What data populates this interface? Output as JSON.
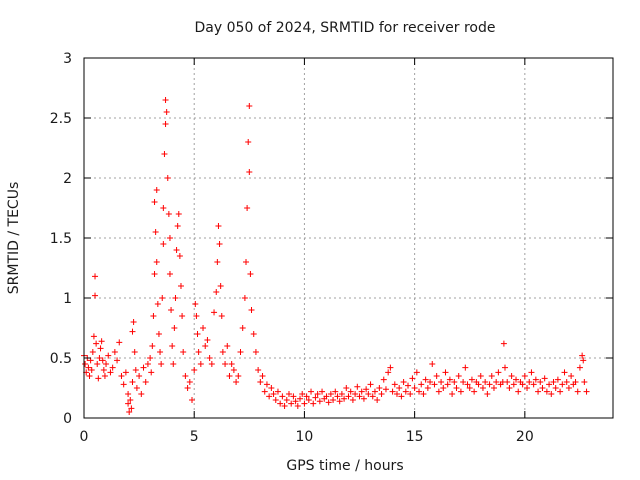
{
  "chart_data": {
    "type": "scatter",
    "title": "Day 050 of 2024, SRMTID for receiver rode",
    "xlabel": "GPS time / hours",
    "ylabel": "SRMTID / TECUs",
    "xlim": [
      0,
      24
    ],
    "ylim": [
      0,
      3
    ],
    "xticks": [
      0,
      5,
      10,
      15,
      20
    ],
    "xtick_labels": [
      "0",
      "5",
      "10",
      "15",
      "20"
    ],
    "yticks": [
      0,
      0.5,
      1,
      1.5,
      2,
      2.5,
      3
    ],
    "ytick_labels": [
      "0",
      "0.5",
      "1",
      "1.5",
      "2",
      "2.5",
      "3"
    ],
    "grid": true,
    "marker": "+",
    "color": "#ff0000",
    "series": [
      {
        "name": "SRMTID",
        "points": [
          [
            0.0,
            0.52
          ],
          [
            0.05,
            0.45
          ],
          [
            0.1,
            0.38
          ],
          [
            0.15,
            0.5
          ],
          [
            0.2,
            0.42
          ],
          [
            0.25,
            0.35
          ],
          [
            0.3,
            0.48
          ],
          [
            0.35,
            0.4
          ],
          [
            0.4,
            0.55
          ],
          [
            0.45,
            0.68
          ],
          [
            0.5,
            1.18
          ],
          [
            0.5,
            1.02
          ],
          [
            0.55,
            0.62
          ],
          [
            0.6,
            0.45
          ],
          [
            0.65,
            0.33
          ],
          [
            0.7,
            0.5
          ],
          [
            0.75,
            0.58
          ],
          [
            0.8,
            0.64
          ],
          [
            0.85,
            0.48
          ],
          [
            0.9,
            0.4
          ],
          [
            0.95,
            0.35
          ],
          [
            1.0,
            0.45
          ],
          [
            1.1,
            0.52
          ],
          [
            1.2,
            0.38
          ],
          [
            1.3,
            0.42
          ],
          [
            1.4,
            0.55
          ],
          [
            1.5,
            0.48
          ],
          [
            1.6,
            0.63
          ],
          [
            1.7,
            0.35
          ],
          [
            1.8,
            0.28
          ],
          [
            1.9,
            0.38
          ],
          [
            2.0,
            0.2
          ],
          [
            2.0,
            0.12
          ],
          [
            2.05,
            0.05
          ],
          [
            2.1,
            0.15
          ],
          [
            2.15,
            0.08
          ],
          [
            2.2,
            0.3
          ],
          [
            2.2,
            0.72
          ],
          [
            2.25,
            0.8
          ],
          [
            2.3,
            0.55
          ],
          [
            2.35,
            0.4
          ],
          [
            2.4,
            0.25
          ],
          [
            2.5,
            0.35
          ],
          [
            2.6,
            0.2
          ],
          [
            2.7,
            0.42
          ],
          [
            2.8,
            0.3
          ],
          [
            2.9,
            0.45
          ],
          [
            3.0,
            0.5
          ],
          [
            3.05,
            0.38
          ],
          [
            3.1,
            0.6
          ],
          [
            3.15,
            0.85
          ],
          [
            3.2,
            1.2
          ],
          [
            3.2,
            1.8
          ],
          [
            3.25,
            1.55
          ],
          [
            3.3,
            1.9
          ],
          [
            3.3,
            1.3
          ],
          [
            3.35,
            0.95
          ],
          [
            3.4,
            0.7
          ],
          [
            3.45,
            0.55
          ],
          [
            3.5,
            0.45
          ],
          [
            3.55,
            1.0
          ],
          [
            3.6,
            1.45
          ],
          [
            3.6,
            1.75
          ],
          [
            3.65,
            2.2
          ],
          [
            3.7,
            2.45
          ],
          [
            3.7,
            2.65
          ],
          [
            3.75,
            2.55
          ],
          [
            3.8,
            2.0
          ],
          [
            3.85,
            1.7
          ],
          [
            3.9,
            1.5
          ],
          [
            3.9,
            1.2
          ],
          [
            3.95,
            0.9
          ],
          [
            4.0,
            0.6
          ],
          [
            4.05,
            0.45
          ],
          [
            4.1,
            0.75
          ],
          [
            4.15,
            1.0
          ],
          [
            4.2,
            1.4
          ],
          [
            4.25,
            1.6
          ],
          [
            4.3,
            1.7
          ],
          [
            4.35,
            1.35
          ],
          [
            4.4,
            1.1
          ],
          [
            4.45,
            0.85
          ],
          [
            4.5,
            0.55
          ],
          [
            4.6,
            0.35
          ],
          [
            4.7,
            0.25
          ],
          [
            4.8,
            0.3
          ],
          [
            4.9,
            0.15
          ],
          [
            5.0,
            0.4
          ],
          [
            5.05,
            0.95
          ],
          [
            5.1,
            0.85
          ],
          [
            5.15,
            0.7
          ],
          [
            5.2,
            0.55
          ],
          [
            5.3,
            0.45
          ],
          [
            5.4,
            0.75
          ],
          [
            5.5,
            0.6
          ],
          [
            5.6,
            0.65
          ],
          [
            5.7,
            0.5
          ],
          [
            5.8,
            0.45
          ],
          [
            5.9,
            0.88
          ],
          [
            6.0,
            1.05
          ],
          [
            6.05,
            1.3
          ],
          [
            6.1,
            1.6
          ],
          [
            6.15,
            1.45
          ],
          [
            6.2,
            1.1
          ],
          [
            6.25,
            0.85
          ],
          [
            6.3,
            0.55
          ],
          [
            6.4,
            0.45
          ],
          [
            6.5,
            0.6
          ],
          [
            6.6,
            0.35
          ],
          [
            6.7,
            0.45
          ],
          [
            6.8,
            0.4
          ],
          [
            6.9,
            0.3
          ],
          [
            7.0,
            0.35
          ],
          [
            7.1,
            0.55
          ],
          [
            7.2,
            0.75
          ],
          [
            7.3,
            1.0
          ],
          [
            7.35,
            1.3
          ],
          [
            7.4,
            1.75
          ],
          [
            7.45,
            2.3
          ],
          [
            7.5,
            2.6
          ],
          [
            7.5,
            2.05
          ],
          [
            7.55,
            1.2
          ],
          [
            7.6,
            0.9
          ],
          [
            7.7,
            0.7
          ],
          [
            7.8,
            0.55
          ],
          [
            7.9,
            0.4
          ],
          [
            8.0,
            0.3
          ],
          [
            8.1,
            0.35
          ],
          [
            8.2,
            0.22
          ],
          [
            8.3,
            0.28
          ],
          [
            8.4,
            0.18
          ],
          [
            8.5,
            0.25
          ],
          [
            8.6,
            0.2
          ],
          [
            8.7,
            0.15
          ],
          [
            8.8,
            0.22
          ],
          [
            8.9,
            0.12
          ],
          [
            9.0,
            0.18
          ],
          [
            9.1,
            0.1
          ],
          [
            9.2,
            0.15
          ],
          [
            9.3,
            0.2
          ],
          [
            9.4,
            0.12
          ],
          [
            9.5,
            0.18
          ],
          [
            9.6,
            0.14
          ],
          [
            9.7,
            0.1
          ],
          [
            9.8,
            0.16
          ],
          [
            9.9,
            0.2
          ],
          [
            10.0,
            0.12
          ],
          [
            10.1,
            0.18
          ],
          [
            10.2,
            0.15
          ],
          [
            10.3,
            0.22
          ],
          [
            10.4,
            0.12
          ],
          [
            10.5,
            0.17
          ],
          [
            10.6,
            0.2
          ],
          [
            10.7,
            0.14
          ],
          [
            10.8,
            0.22
          ],
          [
            10.9,
            0.16
          ],
          [
            11.0,
            0.18
          ],
          [
            11.1,
            0.13
          ],
          [
            11.2,
            0.2
          ],
          [
            11.3,
            0.15
          ],
          [
            11.4,
            0.22
          ],
          [
            11.5,
            0.18
          ],
          [
            11.6,
            0.14
          ],
          [
            11.7,
            0.2
          ],
          [
            11.8,
            0.16
          ],
          [
            11.9,
            0.25
          ],
          [
            12.0,
            0.18
          ],
          [
            12.1,
            0.22
          ],
          [
            12.2,
            0.15
          ],
          [
            12.3,
            0.2
          ],
          [
            12.4,
            0.26
          ],
          [
            12.5,
            0.18
          ],
          [
            12.6,
            0.22
          ],
          [
            12.7,
            0.16
          ],
          [
            12.8,
            0.24
          ],
          [
            12.9,
            0.2
          ],
          [
            13.0,
            0.28
          ],
          [
            13.1,
            0.18
          ],
          [
            13.2,
            0.22
          ],
          [
            13.3,
            0.15
          ],
          [
            13.4,
            0.25
          ],
          [
            13.5,
            0.2
          ],
          [
            13.6,
            0.32
          ],
          [
            13.7,
            0.24
          ],
          [
            13.8,
            0.38
          ],
          [
            13.9,
            0.42
          ],
          [
            14.0,
            0.22
          ],
          [
            14.1,
            0.28
          ],
          [
            14.2,
            0.2
          ],
          [
            14.3,
            0.25
          ],
          [
            14.4,
            0.18
          ],
          [
            14.5,
            0.3
          ],
          [
            14.6,
            0.22
          ],
          [
            14.7,
            0.27
          ],
          [
            14.8,
            0.2
          ],
          [
            14.9,
            0.33
          ],
          [
            15.0,
            0.25
          ],
          [
            15.1,
            0.38
          ],
          [
            15.2,
            0.22
          ],
          [
            15.3,
            0.28
          ],
          [
            15.4,
            0.2
          ],
          [
            15.5,
            0.32
          ],
          [
            15.6,
            0.25
          ],
          [
            15.7,
            0.3
          ],
          [
            15.8,
            0.45
          ],
          [
            15.9,
            0.28
          ],
          [
            16.0,
            0.35
          ],
          [
            16.1,
            0.22
          ],
          [
            16.2,
            0.3
          ],
          [
            16.3,
            0.25
          ],
          [
            16.4,
            0.38
          ],
          [
            16.5,
            0.28
          ],
          [
            16.6,
            0.32
          ],
          [
            16.7,
            0.2
          ],
          [
            16.8,
            0.3
          ],
          [
            16.9,
            0.25
          ],
          [
            17.0,
            0.35
          ],
          [
            17.1,
            0.22
          ],
          [
            17.2,
            0.3
          ],
          [
            17.3,
            0.42
          ],
          [
            17.4,
            0.28
          ],
          [
            17.5,
            0.25
          ],
          [
            17.6,
            0.32
          ],
          [
            17.7,
            0.22
          ],
          [
            17.8,
            0.3
          ],
          [
            17.9,
            0.28
          ],
          [
            18.0,
            0.35
          ],
          [
            18.1,
            0.25
          ],
          [
            18.2,
            0.3
          ],
          [
            18.3,
            0.2
          ],
          [
            18.4,
            0.28
          ],
          [
            18.5,
            0.35
          ],
          [
            18.6,
            0.25
          ],
          [
            18.7,
            0.3
          ],
          [
            18.8,
            0.38
          ],
          [
            18.9,
            0.28
          ],
          [
            19.0,
            0.3
          ],
          [
            19.05,
            0.62
          ],
          [
            19.1,
            0.42
          ],
          [
            19.2,
            0.3
          ],
          [
            19.3,
            0.25
          ],
          [
            19.4,
            0.35
          ],
          [
            19.5,
            0.28
          ],
          [
            19.6,
            0.32
          ],
          [
            19.7,
            0.22
          ],
          [
            19.8,
            0.3
          ],
          [
            19.9,
            0.28
          ],
          [
            20.0,
            0.35
          ],
          [
            20.1,
            0.25
          ],
          [
            20.2,
            0.3
          ],
          [
            20.3,
            0.38
          ],
          [
            20.4,
            0.28
          ],
          [
            20.5,
            0.32
          ],
          [
            20.6,
            0.22
          ],
          [
            20.7,
            0.3
          ],
          [
            20.8,
            0.25
          ],
          [
            20.9,
            0.33
          ],
          [
            21.0,
            0.22
          ],
          [
            21.1,
            0.28
          ],
          [
            21.2,
            0.2
          ],
          [
            21.3,
            0.3
          ],
          [
            21.4,
            0.25
          ],
          [
            21.5,
            0.32
          ],
          [
            21.6,
            0.22
          ],
          [
            21.7,
            0.28
          ],
          [
            21.8,
            0.38
          ],
          [
            21.9,
            0.3
          ],
          [
            22.0,
            0.25
          ],
          [
            22.1,
            0.35
          ],
          [
            22.2,
            0.28
          ],
          [
            22.3,
            0.3
          ],
          [
            22.4,
            0.22
          ],
          [
            22.5,
            0.42
          ],
          [
            22.6,
            0.52
          ],
          [
            22.65,
            0.48
          ],
          [
            22.7,
            0.3
          ],
          [
            22.8,
            0.22
          ]
        ]
      }
    ]
  }
}
